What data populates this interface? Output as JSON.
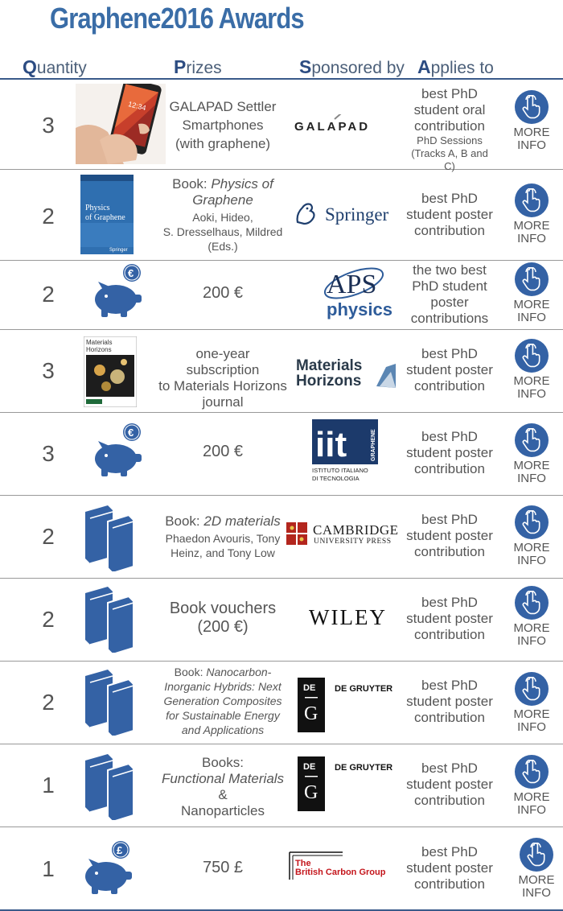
{
  "page": {
    "title": "Graphene2016 Awards"
  },
  "columns": {
    "quantity": {
      "initial": "Q",
      "rest": "uantity"
    },
    "prizes": {
      "initial": "P",
      "rest": "rizes"
    },
    "sponsored": {
      "initial": "S",
      "rest": "ponsored by"
    },
    "applies": {
      "initial": "A",
      "rest": "pplies to"
    }
  },
  "more_info": {
    "line1": "MORE",
    "line2": "INFO"
  },
  "colors": {
    "accent": "#3462a5",
    "title": "#3a6da7",
    "text": "#555555",
    "springer": "#1f3f6e",
    "aps": "#2e5c9a"
  },
  "rows": [
    {
      "quantity": "3",
      "prize": [
        "GALAPAD Settler",
        "Smartphones",
        "(with graphene)"
      ],
      "sponsor": "GALAPAD",
      "applies": [
        "best PhD",
        "student oral",
        "contribution"
      ],
      "applies_small": [
        "PhD Sessions",
        "(Tracks A, B and C)"
      ],
      "image": "smartphone-photo"
    },
    {
      "quantity": "2",
      "prize_lead": "Book: ",
      "prize_title": "Physics of Graphene",
      "prize_rest": [
        "Aoki, Hideo,",
        "S. Dresselhaus, Mildred",
        "(Eds.)"
      ],
      "sponsor": "Springer",
      "applies": [
        "best PhD",
        "student poster",
        "contribution"
      ],
      "image": "book-cover",
      "book_cover": {
        "title1": "Physics",
        "title2": "of Graphene",
        "publisher": "Springer"
      }
    },
    {
      "quantity": "2",
      "prize": [
        "200 €"
      ],
      "sponsor_parts": [
        "APS",
        "physics"
      ],
      "applies": [
        "the two best",
        "PhD student",
        "poster",
        "contributions"
      ],
      "image": "piggy-bank-icon",
      "currency": "€"
    },
    {
      "quantity": "3",
      "prize": [
        "one-year subscription",
        "to Materials Horizons",
        "journal"
      ],
      "sponsor_parts": [
        "Materials",
        "Horizons"
      ],
      "applies": [
        "best PhD",
        "student poster",
        "contribution"
      ],
      "image": "journal-cover",
      "journal_cover": {
        "title1": "Materials",
        "title2": "Horizons"
      }
    },
    {
      "quantity": "3",
      "prize": [
        "200 €"
      ],
      "sponsor_parts": [
        "iit",
        "GRAPHENE",
        "ISTITUTO ITALIANO",
        "DI TECNOLOGIA"
      ],
      "applies": [
        "best PhD",
        "student poster",
        "contribution"
      ],
      "image": "piggy-bank-icon",
      "currency": "€"
    },
    {
      "quantity": "2",
      "prize_lead": "Book: ",
      "prize_title": "2D materials",
      "prize_rest": [
        "Phaedon Avouris, Tony",
        "Heinz, and Tony Low"
      ],
      "sponsor_parts": [
        "CAMBRIDGE",
        "UNIVERSITY PRESS"
      ],
      "applies": [
        "best PhD",
        "student poster",
        "contribution"
      ],
      "image": "books-icon"
    },
    {
      "quantity": "2",
      "prize": [
        "Book vouchers",
        "(200 €)"
      ],
      "sponsor": "WILEY",
      "applies": [
        "best PhD",
        "student poster",
        "contribution"
      ],
      "image": "books-icon"
    },
    {
      "quantity": "2",
      "prize_lead": "Book: ",
      "prize_title_lines": [
        "Nanocarbon-",
        "Inorganic Hybrids: Next",
        "Generation Composites",
        "for Sustainable Energy",
        "and Applications"
      ],
      "sponsor_parts": [
        "DE",
        "G",
        "DE GRUYTER"
      ],
      "applies": [
        "best PhD",
        "student poster",
        "contribution"
      ],
      "image": "books-icon"
    },
    {
      "quantity": "1",
      "prize_lead": "Books:",
      "prize_title_lines": [
        "Functional Materials"
      ],
      "prize_amp": "&",
      "prize_tail": "Nanoparticles",
      "sponsor_parts": [
        "DE",
        "G",
        "DE GRUYTER"
      ],
      "applies": [
        "best PhD",
        "student poster",
        "contribution"
      ],
      "image": "books-icon"
    },
    {
      "quantity": "1",
      "prize": [
        "750 £"
      ],
      "sponsor_parts": [
        "The",
        "British Carbon Group"
      ],
      "applies": [
        "best PhD",
        "student poster",
        "contribution"
      ],
      "image": "piggy-bank-icon",
      "currency": "£"
    }
  ]
}
